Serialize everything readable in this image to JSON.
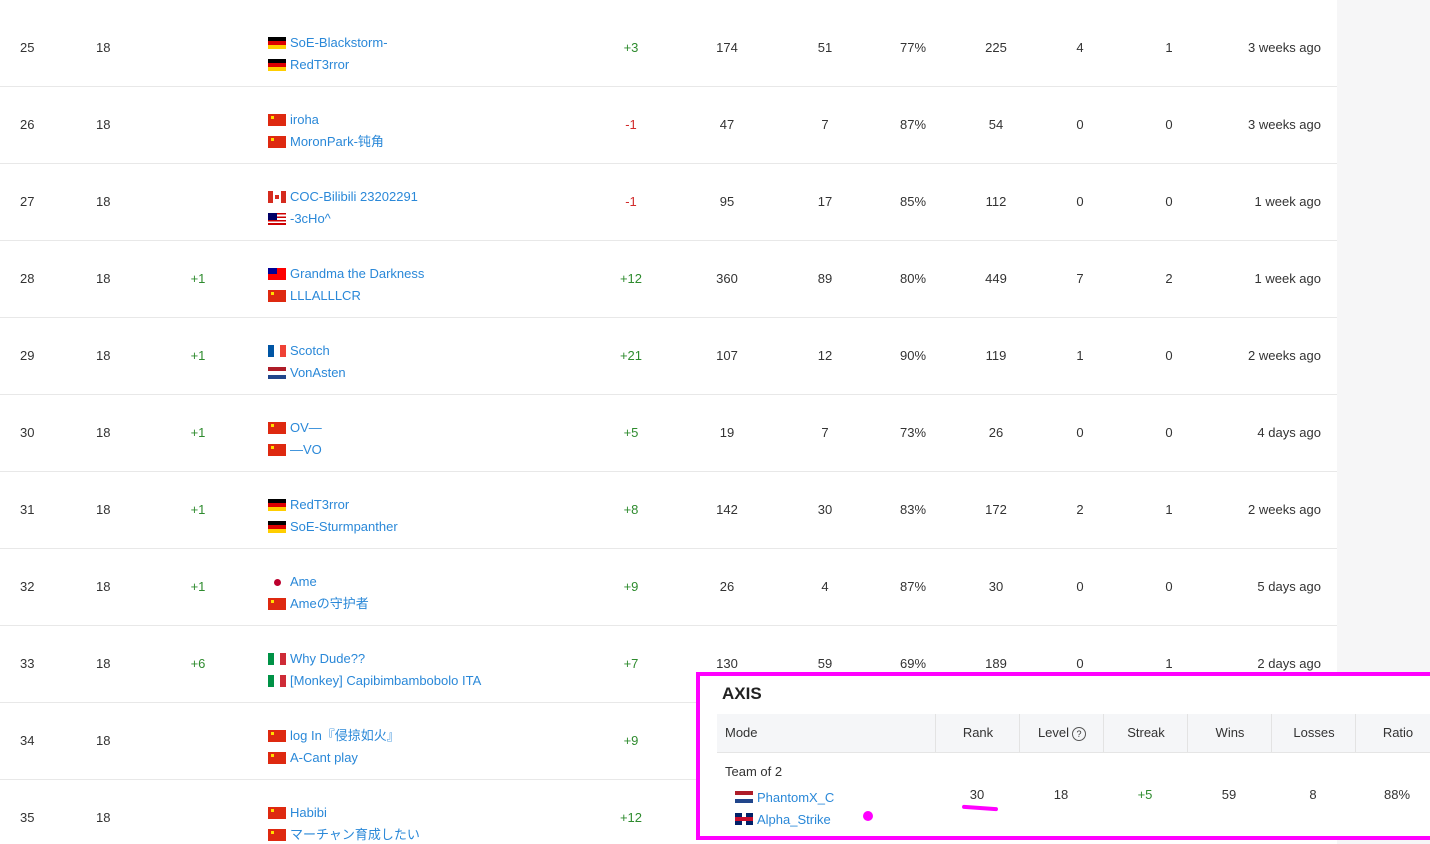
{
  "leaderboard": {
    "rows": [
      {
        "rank": "25",
        "level": "18",
        "change": "",
        "players": [
          {
            "flag": "de",
            "name": "SoE-Blackstorm-"
          },
          {
            "flag": "de",
            "name": "RedT3rror"
          }
        ],
        "streak": "+3",
        "wins": "174",
        "losses": "51",
        "ratio": "77%",
        "games": "225",
        "drops": "4",
        "desyncs": "1",
        "last": "3 weeks ago"
      },
      {
        "rank": "26",
        "level": "18",
        "change": "",
        "players": [
          {
            "flag": "cn",
            "name": "iroha"
          },
          {
            "flag": "cn",
            "name": "MoronPark-钝角"
          }
        ],
        "streak": "-1",
        "wins": "47",
        "losses": "7",
        "ratio": "87%",
        "games": "54",
        "drops": "0",
        "desyncs": "0",
        "last": "3 weeks ago"
      },
      {
        "rank": "27",
        "level": "18",
        "change": "",
        "players": [
          {
            "flag": "ca",
            "name": "COC-Bilibili 23202291"
          },
          {
            "flag": "my",
            "name": "-3cHo^"
          }
        ],
        "streak": "-1",
        "wins": "95",
        "losses": "17",
        "ratio": "85%",
        "games": "112",
        "drops": "0",
        "desyncs": "0",
        "last": "1 week ago"
      },
      {
        "rank": "28",
        "level": "18",
        "change": "+1",
        "players": [
          {
            "flag": "tw",
            "name": "Grandma the Darkness"
          },
          {
            "flag": "cn",
            "name": "LLLALLLCR"
          }
        ],
        "streak": "+12",
        "wins": "360",
        "losses": "89",
        "ratio": "80%",
        "games": "449",
        "drops": "7",
        "desyncs": "2",
        "last": "1 week ago"
      },
      {
        "rank": "29",
        "level": "18",
        "change": "+1",
        "players": [
          {
            "flag": "fr",
            "name": "Scotch"
          },
          {
            "flag": "nl",
            "name": "VonAsten"
          }
        ],
        "streak": "+21",
        "wins": "107",
        "losses": "12",
        "ratio": "90%",
        "games": "119",
        "drops": "1",
        "desyncs": "0",
        "last": "2 weeks ago"
      },
      {
        "rank": "30",
        "level": "18",
        "change": "+1",
        "players": [
          {
            "flag": "cn",
            "name": "OV—"
          },
          {
            "flag": "cn",
            "name": "—VO"
          }
        ],
        "streak": "+5",
        "wins": "19",
        "losses": "7",
        "ratio": "73%",
        "games": "26",
        "drops": "0",
        "desyncs": "0",
        "last": "4 days ago"
      },
      {
        "rank": "31",
        "level": "18",
        "change": "+1",
        "players": [
          {
            "flag": "de",
            "name": "RedT3rror"
          },
          {
            "flag": "de",
            "name": "SoE-Sturmpanther"
          }
        ],
        "streak": "+8",
        "wins": "142",
        "losses": "30",
        "ratio": "83%",
        "games": "172",
        "drops": "2",
        "desyncs": "1",
        "last": "2 weeks ago"
      },
      {
        "rank": "32",
        "level": "18",
        "change": "+1",
        "players": [
          {
            "flag": "jp",
            "name": "Ame"
          },
          {
            "flag": "cn",
            "name": "Ameの守护者"
          }
        ],
        "streak": "+9",
        "wins": "26",
        "losses": "4",
        "ratio": "87%",
        "games": "30",
        "drops": "0",
        "desyncs": "0",
        "last": "5 days ago"
      },
      {
        "rank": "33",
        "level": "18",
        "change": "+6",
        "players": [
          {
            "flag": "it",
            "name": "Why Dude??"
          },
          {
            "flag": "it",
            "name": "[Monkey] Capibimbambobolo ITA"
          }
        ],
        "streak": "+7",
        "wins": "130",
        "losses": "59",
        "ratio": "69%",
        "games": "189",
        "drops": "0",
        "desyncs": "1",
        "last": "2 days ago"
      },
      {
        "rank": "34",
        "level": "18",
        "change": "",
        "players": [
          {
            "flag": "cn",
            "name": "log In『侵掠如火』"
          },
          {
            "flag": "cn",
            "name": "A-Cant play"
          }
        ],
        "streak": "+9",
        "wins": "",
        "losses": "",
        "ratio": "",
        "games": "",
        "drops": "",
        "desyncs": "",
        "last": ""
      },
      {
        "rank": "35",
        "level": "18",
        "change": "",
        "players": [
          {
            "flag": "cn",
            "name": "Habibi"
          },
          {
            "flag": "cn",
            "name": "マーチャン育成したい"
          }
        ],
        "streak": "+12",
        "wins": "",
        "losses": "",
        "ratio": "",
        "games": "",
        "drops": "",
        "desyncs": "",
        "last": ""
      }
    ]
  },
  "overlay": {
    "title": "AXIS",
    "headers": {
      "mode": "Mode",
      "rank": "Rank",
      "level": "Level",
      "level_help": "?",
      "streak": "Streak",
      "wins": "Wins",
      "losses": "Losses",
      "ratio": "Ratio"
    },
    "row": {
      "mode": "Team of 2",
      "players": [
        {
          "flag": "nl",
          "name": "PhantomX_C"
        },
        {
          "flag": "gb",
          "name": "Alpha_Strike"
        }
      ],
      "rank": "30",
      "level": "18",
      "streak": "+5",
      "wins": "59",
      "losses": "8",
      "ratio": "88%"
    },
    "highlight_color": "#ff00ff"
  }
}
